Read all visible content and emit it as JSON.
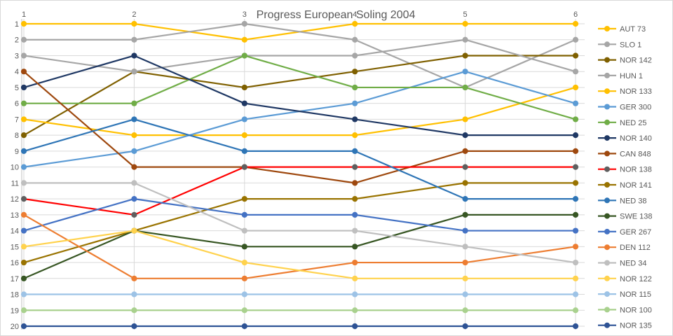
{
  "title": "Progress European Soling 2004",
  "chart_data": {
    "type": "line",
    "title": "Progress European Soling 2004",
    "xlabel": "",
    "ylabel": "",
    "x_axis": {
      "position": "top",
      "labels": [
        "1",
        "2",
        "3",
        "4",
        "5",
        "6"
      ]
    },
    "y_axis": {
      "labels": [
        "1",
        "2",
        "3",
        "4",
        "5",
        "6",
        "7",
        "8",
        "9",
        "10",
        "11",
        "12",
        "13",
        "14",
        "15",
        "16",
        "17",
        "18",
        "19",
        "20"
      ],
      "min": 1,
      "max": 20,
      "inverted": true
    },
    "grid": "on",
    "legend_position": "right",
    "axis_text_color": "#595959",
    "grid_color": "#d9d9d9",
    "series": [
      {
        "name": "AUT 73",
        "color": "#FFC000",
        "values": [
          1,
          1,
          2,
          1,
          1,
          1
        ]
      },
      {
        "name": "SLO 1",
        "color": "#A6A6A6",
        "values": [
          2,
          2,
          1,
          2,
          5,
          2
        ]
      },
      {
        "name": "NOR 142",
        "color": "#7F6000",
        "values": [
          8,
          4,
          5,
          4,
          3,
          3
        ]
      },
      {
        "name": "HUN 1",
        "color": "#A6A6A6",
        "values": [
          3,
          4,
          3,
          3,
          2,
          4
        ]
      },
      {
        "name": "NOR 133",
        "color": "#FFC000",
        "values": [
          7,
          8,
          8,
          8,
          7,
          5
        ]
      },
      {
        "name": "GER 300",
        "color": "#5B9BD5",
        "values": [
          10,
          9,
          7,
          6,
          4,
          6
        ]
      },
      {
        "name": "NED 25",
        "color": "#70AD47",
        "values": [
          6,
          6,
          3,
          5,
          5,
          7
        ]
      },
      {
        "name": "NOR 140",
        "color": "#1F3864",
        "values": [
          5,
          3,
          6,
          7,
          8,
          8
        ]
      },
      {
        "name": "CAN 848",
        "color": "#9E480E",
        "values": [
          4,
          10,
          10,
          11,
          9,
          9
        ]
      },
      {
        "name": "NOR 138",
        "color": "#FF0000",
        "marker_color": "#5F5F5F",
        "values": [
          12,
          13,
          10,
          10,
          10,
          10
        ]
      },
      {
        "name": "NOR 141",
        "color": "#997300",
        "values": [
          16,
          14,
          12,
          12,
          11,
          11
        ]
      },
      {
        "name": "NED 38",
        "color": "#2E75B6",
        "values": [
          9,
          7,
          9,
          9,
          12,
          12
        ]
      },
      {
        "name": "SWE 138",
        "color": "#375623",
        "values": [
          17,
          14,
          15,
          15,
          13,
          13
        ]
      },
      {
        "name": "GER 267",
        "color": "#4472C4",
        "values": [
          14,
          12,
          13,
          13,
          14,
          14
        ]
      },
      {
        "name": "DEN 112",
        "color": "#ED7D31",
        "values": [
          13,
          17,
          17,
          16,
          16,
          15
        ]
      },
      {
        "name": "NED 34",
        "color": "#BFBFBF",
        "values": [
          11,
          11,
          14,
          14,
          15,
          16
        ]
      },
      {
        "name": "NOR 122",
        "color": "#FFD24D",
        "values": [
          15,
          14,
          16,
          17,
          17,
          17
        ]
      },
      {
        "name": "NOR 115",
        "color": "#9DC3E6",
        "values": [
          18,
          18,
          18,
          18,
          18,
          18
        ]
      },
      {
        "name": "NOR 100",
        "color": "#A9D18E",
        "values": [
          19,
          19,
          19,
          19,
          19,
          19
        ]
      },
      {
        "name": "NOR 135",
        "color": "#2E5395",
        "values": [
          20,
          20,
          20,
          20,
          20,
          20
        ]
      }
    ]
  }
}
